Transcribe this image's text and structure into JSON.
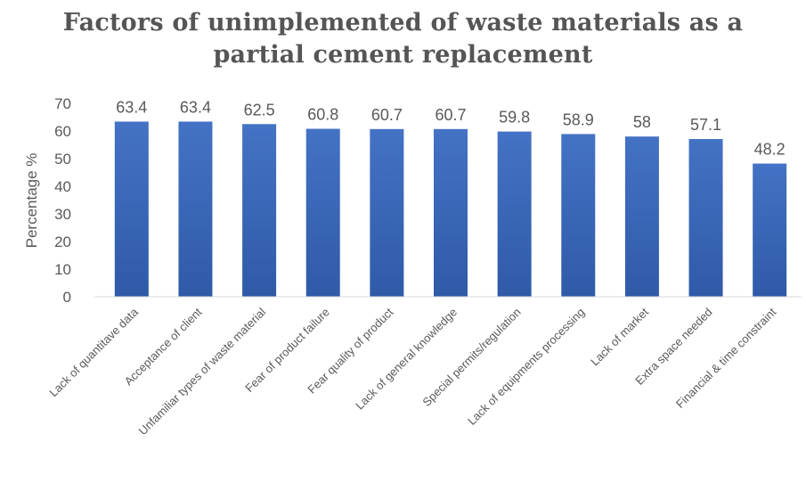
{
  "chart_data": {
    "type": "bar",
    "title_lines": [
      "Factors of unimplemented of waste materials as a",
      "partial cement replacement"
    ],
    "ylabel": "Percentage %",
    "xlabel": "",
    "ylim": [
      0,
      70
    ],
    "yticks": [
      0,
      10,
      20,
      30,
      40,
      50,
      60,
      70
    ],
    "grid": false,
    "legend": "none",
    "bar_color": "#4472c4",
    "bar_color_dark": "#2f5aa8",
    "categories": [
      "Lack of quantitave data",
      "Acceptance of client",
      "Unfamiliar types of waste material",
      "Fear of product failure",
      "Fear quality of product",
      "Lack of general knowledge",
      "Special permits/regulation",
      "Lack of equipments processing",
      "Lack of market",
      "Extra space needed",
      "Financial & time constraint"
    ],
    "values": [
      63.4,
      63.4,
      62.5,
      60.8,
      60.7,
      60.7,
      59.8,
      58.9,
      58,
      57.1,
      48.2
    ],
    "data_labels": [
      "63.4",
      "63.4",
      "62.5",
      "60.8",
      "60.7",
      "60.7",
      "59.8",
      "58.9",
      "58",
      "57.1",
      "48.2"
    ]
  }
}
